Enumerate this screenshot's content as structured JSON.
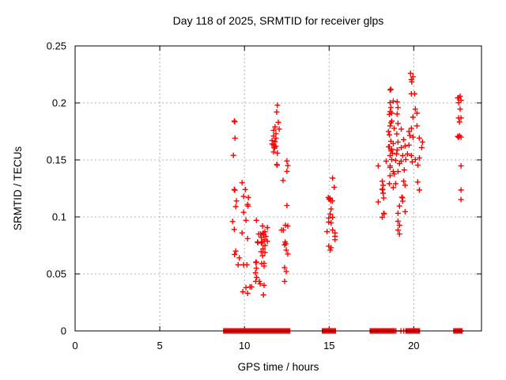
{
  "chart_data": {
    "type": "scatter",
    "title": "Day 118 of 2025, SRMTID for receiver glps",
    "xlabel": "GPS time / hours",
    "ylabel": "SRMTID / TECUs",
    "xlim": [
      0,
      24
    ],
    "ylim": [
      0,
      0.25
    ],
    "xticks": {
      "values": [
        0,
        5,
        10,
        15,
        20
      ],
      "labels": [
        "0",
        "5",
        "10",
        "15",
        "20"
      ]
    },
    "yticks": {
      "values": [
        0,
        0.05,
        0.1,
        0.15,
        0.2,
        0.25
      ],
      "labels": [
        "0",
        "0.05",
        "0.1",
        "0.15",
        "0.2",
        "0.25"
      ]
    },
    "grid": true,
    "legend": "none",
    "marker": "plus",
    "colors": {
      "marker": "#ff0000",
      "grid": "#b0b0b0",
      "axis": "#000000",
      "background": "#ffffff"
    },
    "points": [
      [
        9.4,
        0.184
      ],
      [
        9.43,
        0.1835
      ],
      [
        9.44,
        0.169
      ],
      [
        9.35,
        0.154
      ],
      [
        9.86,
        0.13
      ],
      [
        9.4,
        0.124
      ],
      [
        9.43,
        0.1235
      ],
      [
        10.05,
        0.124
      ],
      [
        9.95,
        0.118
      ],
      [
        10.23,
        0.117
      ],
      [
        9.53,
        0.114
      ],
      [
        10.19,
        0.111
      ],
      [
        10.21,
        0.1095
      ],
      [
        9.49,
        0.109
      ],
      [
        9.95,
        0.104
      ],
      [
        10.09,
        0.097
      ],
      [
        9.3,
        0.096
      ],
      [
        10.7,
        0.097
      ],
      [
        9.4,
        0.089
      ],
      [
        9.86,
        0.086
      ],
      [
        10.19,
        0.081
      ],
      [
        9.49,
        0.07
      ],
      [
        9.42,
        0.067
      ],
      [
        9.7,
        0.064
      ],
      [
        9.63,
        0.058
      ],
      [
        9.95,
        0.058
      ],
      [
        10.14,
        0.058
      ],
      [
        10.67,
        0.06
      ],
      [
        10.7,
        0.055
      ],
      [
        10.65,
        0.051
      ],
      [
        10.72,
        0.047
      ],
      [
        10.93,
        0.0414
      ],
      [
        10.67,
        0.0435
      ],
      [
        10.88,
        0.0435
      ],
      [
        11.16,
        0.04
      ],
      [
        10.09,
        0.038
      ],
      [
        10.33,
        0.0386
      ],
      [
        10.42,
        0.0386
      ],
      [
        9.91,
        0.0344
      ],
      [
        10.19,
        0.033
      ],
      [
        11.12,
        0.0316
      ],
      [
        10.95,
        0.085
      ],
      [
        11.0,
        0.082
      ],
      [
        11.05,
        0.0781
      ],
      [
        11.1,
        0.086
      ],
      [
        11.16,
        0.08
      ],
      [
        11.21,
        0.075
      ],
      [
        11.1,
        0.072
      ],
      [
        11.0,
        0.077
      ],
      [
        11.26,
        0.083
      ],
      [
        11.21,
        0.087
      ],
      [
        11.07,
        0.092
      ],
      [
        11.35,
        0.0906
      ],
      [
        10.84,
        0.085
      ],
      [
        11.12,
        0.0843
      ],
      [
        10.77,
        0.078
      ],
      [
        10.79,
        0.0775
      ],
      [
        11.35,
        0.0787
      ],
      [
        10.98,
        0.0695
      ],
      [
        11.21,
        0.0688
      ],
      [
        10.7,
        0.0604
      ],
      [
        11.02,
        0.059
      ],
      [
        11.16,
        0.0569
      ],
      [
        11.07,
        0.066
      ],
      [
        11.16,
        0.0593
      ],
      [
        11.95,
        0.198
      ],
      [
        11.9,
        0.192
      ],
      [
        12.0,
        0.183
      ],
      [
        11.81,
        0.179
      ],
      [
        12.05,
        0.177
      ],
      [
        11.72,
        0.176
      ],
      [
        11.86,
        0.173
      ],
      [
        11.72,
        0.171
      ],
      [
        11.86,
        0.169
      ],
      [
        11.63,
        0.167
      ],
      [
        11.81,
        0.166
      ],
      [
        11.63,
        0.164
      ],
      [
        11.72,
        0.163
      ],
      [
        11.75,
        0.161
      ],
      [
        11.78,
        0.1605
      ],
      [
        11.86,
        0.162
      ],
      [
        11.72,
        0.157
      ],
      [
        11.95,
        0.156
      ],
      [
        11.91,
        0.146
      ],
      [
        11.93,
        0.1455
      ],
      [
        12.51,
        0.149
      ],
      [
        12.56,
        0.145
      ],
      [
        12.51,
        0.14
      ],
      [
        12.28,
        0.132
      ],
      [
        12.51,
        0.11
      ],
      [
        12.19,
        0.0885
      ],
      [
        12.42,
        0.0927
      ],
      [
        12.56,
        0.092
      ],
      [
        12.3,
        0.0885
      ],
      [
        12.4,
        0.078
      ],
      [
        12.45,
        0.0765
      ],
      [
        12.37,
        0.0755
      ],
      [
        12.47,
        0.0709
      ],
      [
        12.56,
        0.0674
      ],
      [
        12.37,
        0.0555
      ],
      [
        12.47,
        0.052
      ],
      [
        12.37,
        0.0435
      ],
      [
        15.21,
        0.134
      ],
      [
        15.3,
        0.126
      ],
      [
        14.95,
        0.117
      ],
      [
        15.05,
        0.1165
      ],
      [
        15.1,
        0.114
      ],
      [
        15.2,
        0.114
      ],
      [
        15.0,
        0.1155
      ],
      [
        15.12,
        0.107
      ],
      [
        15.07,
        0.1025
      ],
      [
        15.21,
        0.0997
      ],
      [
        14.98,
        0.099
      ],
      [
        15.12,
        0.0948
      ],
      [
        14.98,
        0.0955
      ],
      [
        14.88,
        0.0871
      ],
      [
        15.21,
        0.0885
      ],
      [
        15.35,
        0.086
      ],
      [
        15.35,
        0.083
      ],
      [
        15.35,
        0.08
      ],
      [
        14.98,
        0.0744
      ],
      [
        15.12,
        0.073
      ],
      [
        15.07,
        0.0709
      ],
      [
        19.81,
        0.226
      ],
      [
        19.95,
        0.223
      ],
      [
        19.86,
        0.2205
      ],
      [
        19.88,
        0.2185
      ],
      [
        18.65,
        0.212
      ],
      [
        18.6,
        0.2114
      ],
      [
        19.86,
        0.208
      ],
      [
        20.05,
        0.208
      ],
      [
        18.79,
        0.2016
      ],
      [
        19.02,
        0.2009
      ],
      [
        18.6,
        0.2002
      ],
      [
        18.65,
        0.196
      ],
      [
        19.07,
        0.196
      ],
      [
        20.09,
        0.1946
      ],
      [
        18.7,
        0.191
      ],
      [
        18.56,
        0.19
      ],
      [
        19.02,
        0.1903
      ],
      [
        18.6,
        0.1924
      ],
      [
        20.19,
        0.191
      ],
      [
        19.95,
        0.1875
      ],
      [
        18.65,
        0.1826
      ],
      [
        18.7,
        0.184
      ],
      [
        19.07,
        0.182
      ],
      [
        18.84,
        0.1777
      ],
      [
        19.26,
        0.177
      ],
      [
        18.51,
        0.1749
      ],
      [
        18.6,
        0.1798
      ],
      [
        18.56,
        0.172
      ],
      [
        19.0,
        0.1728
      ],
      [
        19.72,
        0.1749
      ],
      [
        19.86,
        0.1777
      ],
      [
        20.19,
        0.1798
      ],
      [
        20.33,
        0.1692
      ],
      [
        19.95,
        0.17
      ],
      [
        19.77,
        0.1714
      ],
      [
        19.4,
        0.1678
      ],
      [
        19.07,
        0.1657
      ],
      [
        18.79,
        0.1643
      ],
      [
        18.65,
        0.1664
      ],
      [
        20.51,
        0.1657
      ],
      [
        20.47,
        0.1608
      ],
      [
        18.51,
        0.1615
      ],
      [
        18.7,
        0.1594
      ],
      [
        19.02,
        0.1587
      ],
      [
        19.26,
        0.1608
      ],
      [
        19.49,
        0.1622
      ],
      [
        19.72,
        0.163
      ],
      [
        18.74,
        0.1559
      ],
      [
        18.98,
        0.1552
      ],
      [
        19.35,
        0.1538
      ],
      [
        19.63,
        0.1552
      ],
      [
        19.86,
        0.1538
      ],
      [
        20.33,
        0.1517
      ],
      [
        18.37,
        0.1489
      ],
      [
        18.93,
        0.1496
      ],
      [
        19.26,
        0.1489
      ],
      [
        19.53,
        0.1503
      ],
      [
        19.91,
        0.1482
      ],
      [
        20.09,
        0.1503
      ],
      [
        20.24,
        0.1454
      ],
      [
        18.6,
        0.1538
      ],
      [
        18.65,
        0.158
      ],
      [
        19.16,
        0.1468
      ],
      [
        19.44,
        0.1412
      ],
      [
        19.07,
        0.1398
      ],
      [
        18.84,
        0.1377
      ],
      [
        17.9,
        0.1447
      ],
      [
        18.6,
        0.1447
      ],
      [
        18.7,
        0.1503
      ],
      [
        18.6,
        0.1433
      ],
      [
        18.79,
        0.1398
      ],
      [
        18.6,
        0.1362
      ],
      [
        18.56,
        0.1615
      ],
      [
        18.14,
        0.1313
      ],
      [
        18.19,
        0.1278
      ],
      [
        18.14,
        0.1243
      ],
      [
        18.16,
        0.1238
      ],
      [
        18.19,
        0.1208
      ],
      [
        18.23,
        0.1166
      ],
      [
        17.9,
        0.1131
      ],
      [
        18.56,
        0.1292
      ],
      [
        18.79,
        0.1257
      ],
      [
        18.93,
        0.1292
      ],
      [
        19.4,
        0.1313
      ],
      [
        19.49,
        0.1278
      ],
      [
        20.23,
        0.1306
      ],
      [
        20.33,
        0.1236
      ],
      [
        19.3,
        0.1173
      ],
      [
        19.33,
        0.1168
      ],
      [
        19.35,
        0.1138
      ],
      [
        19.16,
        0.1096
      ],
      [
        19.07,
        0.1032
      ],
      [
        19.49,
        0.1046
      ],
      [
        18.23,
        0.1032
      ],
      [
        18.25,
        0.1028
      ],
      [
        18.14,
        0.0997
      ],
      [
        19.07,
        0.0962
      ],
      [
        19.16,
        0.0927
      ],
      [
        19.07,
        0.0885
      ],
      [
        19.16,
        0.085
      ],
      [
        22.74,
        0.2058
      ],
      [
        22.6,
        0.2044
      ],
      [
        22.65,
        0.2046
      ],
      [
        22.79,
        0.2023
      ],
      [
        22.65,
        0.2002
      ],
      [
        22.74,
        0.1946
      ],
      [
        22.65,
        0.1868
      ],
      [
        22.79,
        0.1868
      ],
      [
        22.7,
        0.1833
      ],
      [
        22.6,
        0.1706
      ],
      [
        22.65,
        0.1698
      ],
      [
        22.7,
        0.1712
      ],
      [
        22.79,
        0.17
      ],
      [
        22.79,
        0.1447
      ],
      [
        22.79,
        0.1236
      ],
      [
        22.79,
        0.1152
      ]
    ],
    "baseline_value": 0,
    "baseline_segments": [
      [
        8.88,
        9.32
      ],
      [
        9.47,
        10.82
      ],
      [
        10.9,
        12.0
      ],
      [
        12.11,
        12.57
      ],
      [
        14.71,
        15.27
      ],
      [
        17.53,
        18.74
      ],
      [
        19.64,
        20.23
      ],
      [
        22.47,
        22.74
      ]
    ],
    "baseline_singles": [
      18.87,
      18.95,
      19.24,
      19.4,
      19.55,
      22.8
    ]
  }
}
